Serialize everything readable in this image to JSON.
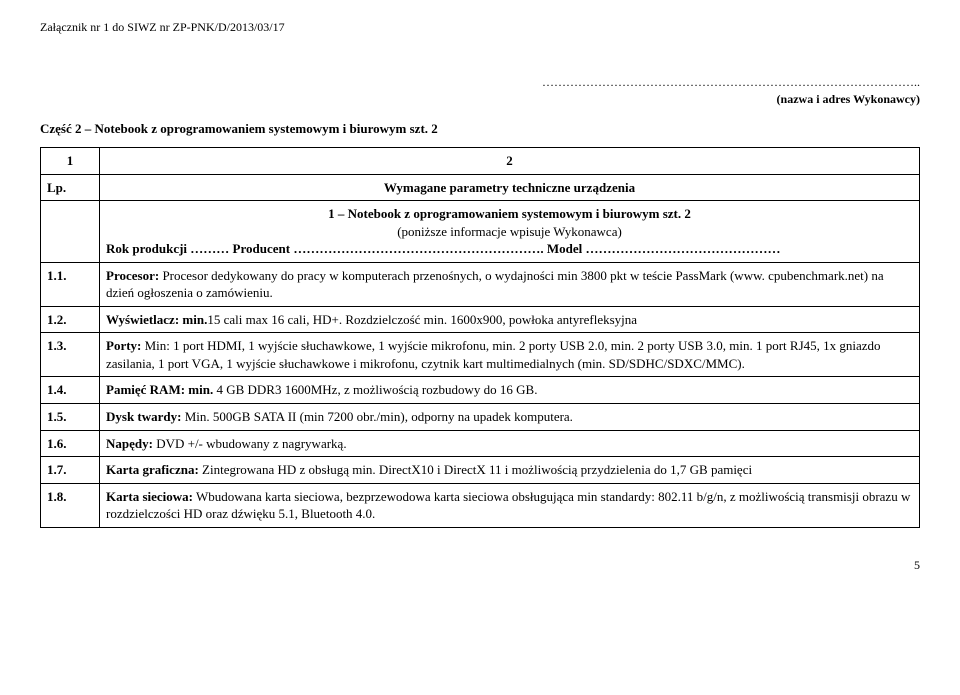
{
  "header_note": "Załącznik nr 1 do SIWZ nr ZP-PNK/D/2013/03/17",
  "dots": "…………………………………………………………………………………..",
  "sub_note": "(nazwa i adres Wykonawcy)",
  "section_title": "Część 2 – Notebook  z oprogramowaniem systemowym i biurowym szt. 2",
  "col1_num": "1",
  "col2_num": "2",
  "lp": "Lp.",
  "col2_head": "Wymagane parametry techniczne urządzenia",
  "desc_head_line1": "1 – Notebook z oprogramowaniem systemowym i biurowym szt. 2",
  "desc_head_line2": "(poniższe informacje wpisuje Wykonawca)",
  "desc_head_line3": "Rok produkcji ……… Producent …………………………………………………. Model ………………………………………",
  "rows": [
    {
      "num": "1.1.",
      "label": "Procesor:",
      "text": " Procesor dedykowany do pracy w komputerach przenośnych, o wydajności min 3800 pkt w teście PassMark (www. cpubenchmark.net) na dzień ogłoszenia o zamówieniu."
    },
    {
      "num": "1.2.",
      "label": "Wyświetlacz: min.",
      "text": "15 cali max 16 cali, HD+. Rozdzielczość min. 1600x900, powłoka antyrefleksyjna"
    },
    {
      "num": "1.3.",
      "label": "Porty: ",
      "text": "Min: 1 port HDMI, 1 wyjście słuchawkowe, 1 wyjście mikrofonu, min. 2 porty USB 2.0, min. 2 porty USB 3.0, min. 1 port RJ45, 1x gniazdo zasilania, 1 port VGA, 1 wyjście słuchawkowe i mikrofonu, czytnik kart multimedialnych (min. SD/SDHC/SDXC/MMC)."
    },
    {
      "num": "1.4.",
      "label": "Pamięć RAM: min.",
      "text": " 4 GB DDR3 1600MHz, z możliwością rozbudowy do 16 GB."
    },
    {
      "num": "1.5.",
      "label": "Dysk twardy:",
      "text": " Min. 500GB SATA II (min 7200 obr./min), odporny na upadek komputera."
    },
    {
      "num": "1.6.",
      "label": "Napędy:",
      "text": " DVD +/- wbudowany z nagrywarką."
    },
    {
      "num": "1.7.",
      "label": "Karta graficzna:",
      "text": " Zintegrowana HD z obsługą min. DirectX10 i DirectX 11 i możliwością przydzielenia do 1,7 GB pamięci"
    },
    {
      "num": "1.8.",
      "label": "Karta sieciowa:",
      "text": " Wbudowana karta sieciowa, bezprzewodowa karta sieciowa obsługująca min standardy: 802.11 b/g/n, z możliwością transmisji obrazu w rozdzielczości HD oraz dźwięku 5.1, Bluetooth 4.0."
    }
  ],
  "page_number": "5"
}
